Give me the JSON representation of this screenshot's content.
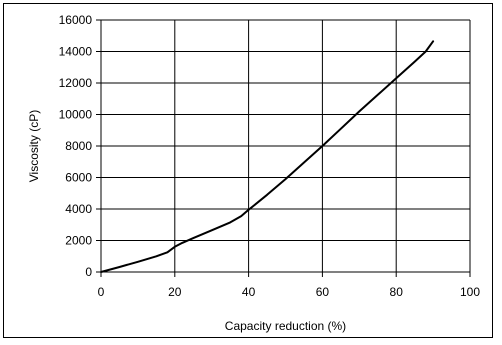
{
  "chart_data": {
    "type": "line",
    "xlabel": "Capacity reduction (%)",
    "ylabel": "Viscosity (cP)",
    "xlim": [
      0,
      100
    ],
    "ylim": [
      0,
      16000
    ],
    "x_ticks": [
      0,
      20,
      40,
      60,
      80,
      100
    ],
    "y_ticks": [
      0,
      2000,
      4000,
      6000,
      8000,
      10000,
      12000,
      14000,
      16000
    ],
    "grid": true,
    "legend": "none",
    "series": [
      {
        "x": [
          0,
          5,
          10,
          15,
          18,
          20,
          22,
          25,
          30,
          35,
          38,
          40,
          45,
          50,
          55,
          60,
          65,
          70,
          75,
          80,
          85,
          88,
          90
        ],
        "y": [
          0,
          320,
          650,
          1000,
          1250,
          1600,
          1850,
          2150,
          2650,
          3150,
          3550,
          3950,
          4900,
          5900,
          6950,
          8000,
          9100,
          10200,
          11250,
          12300,
          13350,
          14000,
          14650
        ],
        "color": "#000000"
      }
    ]
  }
}
